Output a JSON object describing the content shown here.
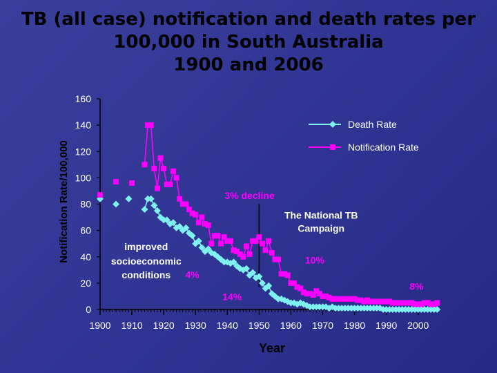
{
  "chart_data": {
    "type": "scatter",
    "title": [
      "TB (all case) notification and death rates per",
      "100,000 in South Australia",
      "1900 and 2006"
    ],
    "xlabel": "Year",
    "ylabel": "Notification Rate/100,000",
    "xlim": [
      1900,
      2007
    ],
    "ylim": [
      0,
      160
    ],
    "xticks": [
      "1900",
      "1910",
      "1920",
      "1930",
      "1940",
      "1950",
      "1960",
      "1970",
      "1980",
      "1990",
      "2000"
    ],
    "yticks": [
      "0",
      "20",
      "40",
      "60",
      "80",
      "100",
      "120",
      "140",
      "160"
    ],
    "legend_position": "top-right",
    "series": [
      {
        "name": "Death Rate",
        "color": "#7ff0f0",
        "marker": "diamond",
        "points": [
          [
            1900,
            84
          ],
          [
            1905,
            80
          ],
          [
            1909,
            84
          ],
          [
            1914,
            76
          ],
          [
            1915,
            84
          ],
          [
            1916,
            84
          ],
          [
            1917,
            79
          ],
          [
            1918,
            75
          ],
          [
            1919,
            70
          ],
          [
            1920,
            68
          ],
          [
            1921,
            68
          ],
          [
            1922,
            65
          ],
          [
            1923,
            66
          ],
          [
            1924,
            62
          ],
          [
            1925,
            63
          ],
          [
            1926,
            60
          ],
          [
            1927,
            62
          ],
          [
            1928,
            58
          ],
          [
            1929,
            56
          ],
          [
            1930,
            50
          ],
          [
            1931,
            52
          ],
          [
            1932,
            47
          ],
          [
            1933,
            44
          ],
          [
            1934,
            46
          ],
          [
            1935,
            43
          ],
          [
            1936,
            42
          ],
          [
            1937,
            40
          ],
          [
            1938,
            38
          ],
          [
            1939,
            36
          ],
          [
            1940,
            36
          ],
          [
            1941,
            35
          ],
          [
            1942,
            36
          ],
          [
            1943,
            33
          ],
          [
            1944,
            31
          ],
          [
            1945,
            30
          ],
          [
            1946,
            31
          ],
          [
            1947,
            26
          ],
          [
            1948,
            28
          ],
          [
            1949,
            24
          ],
          [
            1950,
            25
          ],
          [
            1951,
            20
          ],
          [
            1952,
            16
          ],
          [
            1953,
            18
          ],
          [
            1954,
            12
          ],
          [
            1955,
            10
          ],
          [
            1956,
            8
          ],
          [
            1957,
            8
          ],
          [
            1958,
            7
          ],
          [
            1959,
            6
          ],
          [
            1960,
            5
          ],
          [
            1961,
            5
          ],
          [
            1962,
            4
          ],
          [
            1963,
            5
          ],
          [
            1964,
            4
          ],
          [
            1965,
            3
          ],
          [
            1966,
            2
          ],
          [
            1967,
            2
          ],
          [
            1968,
            2
          ],
          [
            1969,
            2
          ],
          [
            1970,
            2
          ],
          [
            1971,
            2
          ],
          [
            1972,
            1
          ],
          [
            1973,
            2
          ],
          [
            1974,
            1
          ],
          [
            1975,
            1
          ],
          [
            1976,
            1
          ],
          [
            1977,
            1
          ],
          [
            1978,
            1
          ],
          [
            1979,
            1
          ],
          [
            1980,
            1
          ],
          [
            1981,
            1
          ],
          [
            1982,
            1
          ],
          [
            1983,
            1
          ],
          [
            1984,
            1
          ],
          [
            1985,
            1
          ],
          [
            1986,
            1
          ],
          [
            1987,
            1
          ],
          [
            1988,
            1
          ],
          [
            1989,
            0
          ],
          [
            1990,
            0
          ],
          [
            1991,
            0
          ],
          [
            1992,
            0
          ],
          [
            1993,
            0
          ],
          [
            1994,
            0
          ],
          [
            1995,
            0
          ],
          [
            1996,
            0
          ],
          [
            1997,
            0
          ],
          [
            1998,
            0
          ],
          [
            1999,
            0
          ],
          [
            2000,
            0
          ],
          [
            2001,
            0
          ],
          [
            2002,
            0
          ],
          [
            2003,
            0
          ],
          [
            2004,
            0
          ],
          [
            2005,
            0
          ],
          [
            2006,
            0
          ]
        ]
      },
      {
        "name": "Notification Rate",
        "color": "#ff00ff",
        "marker": "square",
        "points": [
          [
            1900,
            87
          ],
          [
            1905,
            97
          ],
          [
            1910,
            96
          ],
          [
            1914,
            110
          ],
          [
            1915,
            140
          ],
          [
            1916,
            140
          ],
          [
            1917,
            107
          ],
          [
            1918,
            92
          ],
          [
            1919,
            115
          ],
          [
            1920,
            107
          ],
          [
            1921,
            95
          ],
          [
            1922,
            95
          ],
          [
            1923,
            105
          ],
          [
            1924,
            100
          ],
          [
            1925,
            84
          ],
          [
            1926,
            80
          ],
          [
            1927,
            80
          ],
          [
            1928,
            76
          ],
          [
            1929,
            73
          ],
          [
            1930,
            72
          ],
          [
            1931,
            66
          ],
          [
            1932,
            70
          ],
          [
            1933,
            65
          ],
          [
            1934,
            64
          ],
          [
            1935,
            50
          ],
          [
            1936,
            56
          ],
          [
            1937,
            56
          ],
          [
            1938,
            50
          ],
          [
            1939,
            55
          ],
          [
            1940,
            52
          ],
          [
            1941,
            52
          ],
          [
            1942,
            45
          ],
          [
            1943,
            44
          ],
          [
            1944,
            42
          ],
          [
            1945,
            40
          ],
          [
            1946,
            48
          ],
          [
            1947,
            42
          ],
          [
            1948,
            52
          ],
          [
            1949,
            52
          ],
          [
            1950,
            55
          ],
          [
            1951,
            50
          ],
          [
            1952,
            45
          ],
          [
            1953,
            52
          ],
          [
            1954,
            43
          ],
          [
            1955,
            38
          ],
          [
            1956,
            38
          ],
          [
            1957,
            27
          ],
          [
            1958,
            27
          ],
          [
            1959,
            26
          ],
          [
            1960,
            20
          ],
          [
            1961,
            20
          ],
          [
            1962,
            17
          ],
          [
            1963,
            16
          ],
          [
            1964,
            13
          ],
          [
            1965,
            12
          ],
          [
            1966,
            12
          ],
          [
            1967,
            11
          ],
          [
            1968,
            14
          ],
          [
            1969,
            12
          ],
          [
            1970,
            10
          ],
          [
            1971,
            10
          ],
          [
            1972,
            9
          ],
          [
            1973,
            8
          ],
          [
            1974,
            8
          ],
          [
            1975,
            8
          ],
          [
            1976,
            8
          ],
          [
            1977,
            8
          ],
          [
            1978,
            8
          ],
          [
            1979,
            8
          ],
          [
            1980,
            8
          ],
          [
            1981,
            7
          ],
          [
            1982,
            7
          ],
          [
            1983,
            6
          ],
          [
            1984,
            7
          ],
          [
            1985,
            6
          ],
          [
            1986,
            6
          ],
          [
            1987,
            6
          ],
          [
            1988,
            6
          ],
          [
            1989,
            6
          ],
          [
            1990,
            6
          ],
          [
            1991,
            6
          ],
          [
            1992,
            5
          ],
          [
            1993,
            5
          ],
          [
            1994,
            5
          ],
          [
            1995,
            5
          ],
          [
            1996,
            5
          ],
          [
            1997,
            5
          ],
          [
            1998,
            5
          ],
          [
            1999,
            4
          ],
          [
            2000,
            4
          ],
          [
            2001,
            4
          ],
          [
            2002,
            5
          ],
          [
            2003,
            5
          ],
          [
            2004,
            4
          ],
          [
            2005,
            4
          ],
          [
            2006,
            5
          ]
        ]
      }
    ],
    "annotations": [
      {
        "text": "3% decline",
        "x": 1947,
        "y": 84,
        "color": "#ff00ff",
        "bold": true
      },
      {
        "text": "The National TB",
        "x": 1969.5,
        "y": 69,
        "color": "#ffffff",
        "bold": true
      },
      {
        "text": "Campaign",
        "x": 1969.5,
        "y": 59,
        "color": "#ffffff",
        "bold": true
      },
      {
        "text": "improved",
        "x": 1914.5,
        "y": 45,
        "color": "#ffffff",
        "bold": true
      },
      {
        "text": "socioeconomic",
        "x": 1914.5,
        "y": 34,
        "color": "#ffffff",
        "bold": true
      },
      {
        "text": "conditions",
        "x": 1914.5,
        "y": 23.5,
        "color": "#ffffff",
        "bold": true
      },
      {
        "text": "4%",
        "x": 1929,
        "y": 24,
        "color": "#ff00ff",
        "bold": true
      },
      {
        "text": "14%",
        "x": 1941.5,
        "y": 7,
        "color": "#ff00ff",
        "bold": true
      },
      {
        "text": "10%",
        "x": 1967.5,
        "y": 35,
        "color": "#ff00ff",
        "bold": true
      },
      {
        "text": "8%",
        "x": 1999.5,
        "y": 15,
        "color": "#ff00ff",
        "bold": true
      }
    ],
    "reference_line": {
      "x": 1950,
      "y_from": 17,
      "y_to": 80
    }
  }
}
